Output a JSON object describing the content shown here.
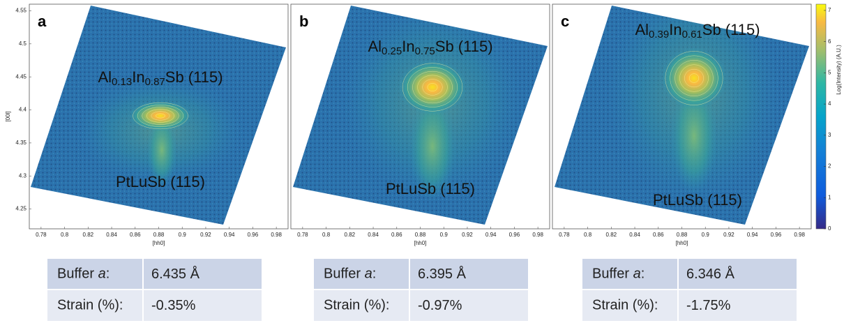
{
  "chart_data": [
    {
      "type": "heatmap",
      "panel_label": "a",
      "xlabel": "[hh0]",
      "ylabel": "[00l]",
      "xlim": [
        0.77,
        0.99
      ],
      "xticks": [
        0.78,
        0.8,
        0.82,
        0.84,
        0.86,
        0.88,
        0.9,
        0.92,
        0.94,
        0.96,
        0.98
      ],
      "ylim": [
        4.22,
        4.56
      ],
      "yticks": [
        4.25,
        4.3,
        4.35,
        4.4,
        4.45,
        4.5,
        4.55
      ],
      "annotations": [
        {
          "text": "Al0.13In0.87Sb (115)"
        },
        {
          "text": "PtLuSb (115)"
        }
      ]
    },
    {
      "type": "heatmap",
      "panel_label": "b",
      "xlabel": "[hh0]",
      "xlim": [
        0.77,
        0.99
      ],
      "xticks": [
        0.78,
        0.8,
        0.82,
        0.84,
        0.86,
        0.88,
        0.9,
        0.92,
        0.94,
        0.96,
        0.98
      ],
      "ylim": [
        4.22,
        4.56
      ],
      "annotations": [
        {
          "text": "Al0.25In0.75Sb (115)"
        },
        {
          "text": "PtLuSb (115)"
        }
      ]
    },
    {
      "type": "heatmap",
      "panel_label": "c",
      "xlabel": "[hh0]",
      "xlim": [
        0.77,
        0.99
      ],
      "xticks": [
        0.78,
        0.8,
        0.82,
        0.84,
        0.86,
        0.88,
        0.9,
        0.92,
        0.94,
        0.96,
        0.98
      ],
      "ylim": [
        4.22,
        4.56
      ],
      "annotations": [
        {
          "text": "Al0.39In0.61Sb (115)"
        },
        {
          "text": "PtLuSb (115)"
        }
      ],
      "colorbar": {
        "label": "Log(Intensity) (A.U.)",
        "lim": [
          0,
          7.2
        ],
        "ticks": [
          0,
          1,
          2,
          3,
          4,
          5,
          6,
          7
        ]
      }
    }
  ],
  "tables": [
    {
      "rows": [
        [
          "Buffer a:",
          "6.435 Å"
        ],
        [
          "Strain (%):",
          "-0.35%"
        ]
      ]
    },
    {
      "rows": [
        [
          "Buffer a:",
          "6.395 Å"
        ],
        [
          "Strain (%):",
          "-0.97%"
        ]
      ]
    },
    {
      "rows": [
        [
          "Buffer a:",
          "6.346 Å"
        ],
        [
          "Strain (%):",
          "-1.75%"
        ]
      ]
    }
  ]
}
